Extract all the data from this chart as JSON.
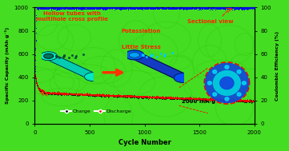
{
  "bg_color": "#44dd22",
  "plot_bg_color": "#44dd22",
  "xlabel": "Cycle Number",
  "ylabel_left": "Specific Capacity (mAh g⁻¹)",
  "ylabel_right": "Coulombic Efficiency (%)",
  "xlim": [
    0,
    2000
  ],
  "ylim_left": [
    0,
    1000
  ],
  "ylim_right": [
    0,
    100
  ],
  "xticks": [
    0,
    500,
    1000,
    1500,
    2000
  ],
  "yticks_left": [
    0,
    200,
    400,
    600,
    800,
    1000
  ],
  "yticks_right": [
    0,
    20,
    40,
    60,
    80,
    100
  ],
  "charge_color": "#111111",
  "discharge_color": "#ee0000",
  "ce_color": "#0000ee",
  "annotation_text1": "Hollow tubes with\nmultihole cross profile",
  "annotation_text2": "Potassiation",
  "annotation_text3": "Little Stress",
  "annotation_text4": "Sectional view",
  "rate_text": "2000 mA g⁻¹",
  "charge_label": "Charge",
  "discharge_label": "Discharge",
  "annotation_color": "#ff2200",
  "figsize": [
    3.61,
    1.89
  ],
  "dpi": 100
}
